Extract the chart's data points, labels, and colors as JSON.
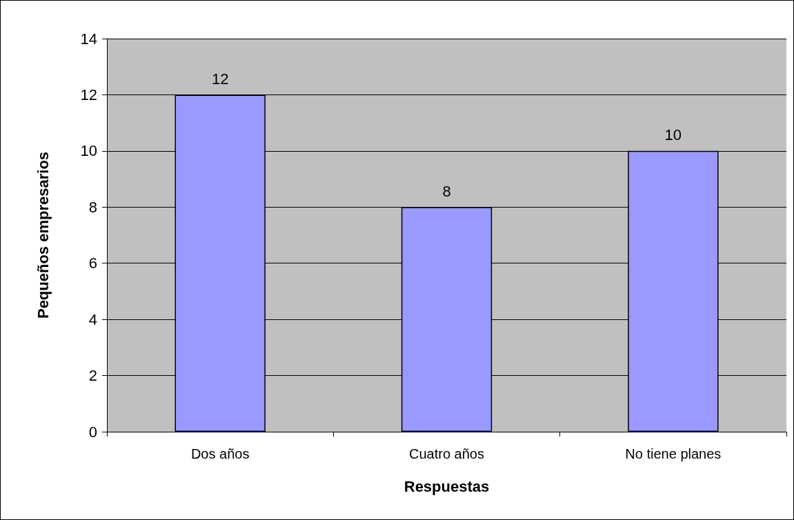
{
  "chart_data": {
    "type": "bar",
    "xlabel": "Respuestas",
    "ylabel": "Pequeños empresarios",
    "categories": [
      "Dos años",
      "Cuatro años",
      "No tiene planes"
    ],
    "values": [
      12,
      8,
      10
    ],
    "color": "#9999ff",
    "ylim": [
      0,
      14
    ],
    "yticks": [
      0,
      2,
      4,
      6,
      8,
      10,
      12,
      14
    ],
    "grid": "y",
    "data_labels": true
  }
}
